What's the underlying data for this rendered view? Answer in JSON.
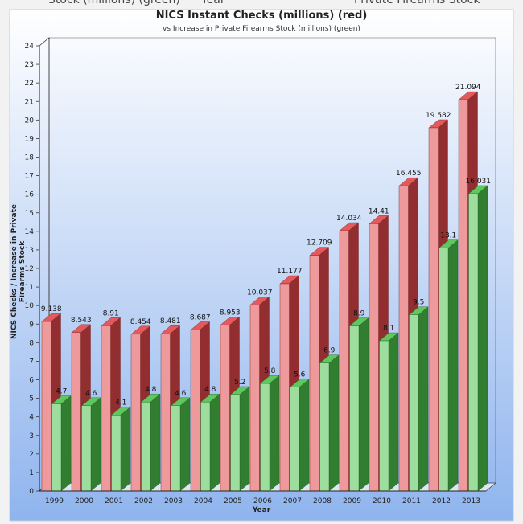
{
  "header_fragments": [
    "Stock (millions) (green)",
    "Year",
    "Private Firearms Stock"
  ],
  "chart_data": {
    "type": "bar",
    "title": "NICS Instant Checks (millions) (red)",
    "subtitle": "vs Increase in Private Firearms Stock (millions) (green)",
    "xlabel": "Year",
    "ylabel": "NICS Checks /  Increase in Private Firearms Stock",
    "ylim": [
      0,
      24
    ],
    "yticks": [
      0,
      1,
      2,
      3,
      4,
      5,
      6,
      7,
      8,
      9,
      10,
      11,
      12,
      13,
      14,
      15,
      16,
      17,
      18,
      19,
      20,
      21,
      22,
      23,
      24
    ],
    "categories": [
      "1999",
      "2000",
      "2001",
      "2002",
      "2003",
      "2004",
      "2005",
      "2006",
      "2007",
      "2008",
      "2009",
      "2010",
      "2011",
      "2012",
      "2013"
    ],
    "series": [
      {
        "color": "#e0464a",
        "values": [
          9.138,
          8.543,
          8.91,
          8.454,
          8.481,
          8.687,
          8.953,
          10.037,
          11.177,
          12.709,
          14.034,
          14.41,
          16.455,
          19.582,
          21.094
        ],
        "labels": [
          "9.138",
          "8.543",
          "8.91",
          "8.454",
          "8.481",
          "8.687",
          "8.953",
          "10.037",
          "11.177",
          "12.709",
          "14.034",
          "14.41",
          "16.455",
          "19.582",
          "21.094"
        ]
      },
      {
        "color": "#4cc24c",
        "values": [
          4.7,
          4.6,
          4.1,
          4.8,
          4.6,
          4.8,
          5.2,
          5.8,
          5.6,
          6.9,
          8.9,
          8.1,
          9.5,
          13.1,
          16.031
        ],
        "labels": [
          "4.7",
          "4.6",
          "4.1",
          "4.8",
          "4.6",
          "4.8",
          "5.2",
          "5.8",
          "5.6",
          "6.9",
          "8.9",
          "8.1",
          "9.5",
          "13.1",
          "16.031"
        ]
      }
    ],
    "grid": false,
    "legend": "none",
    "background_gradient": [
      "#ffffff",
      "#8fb4ee"
    ]
  }
}
